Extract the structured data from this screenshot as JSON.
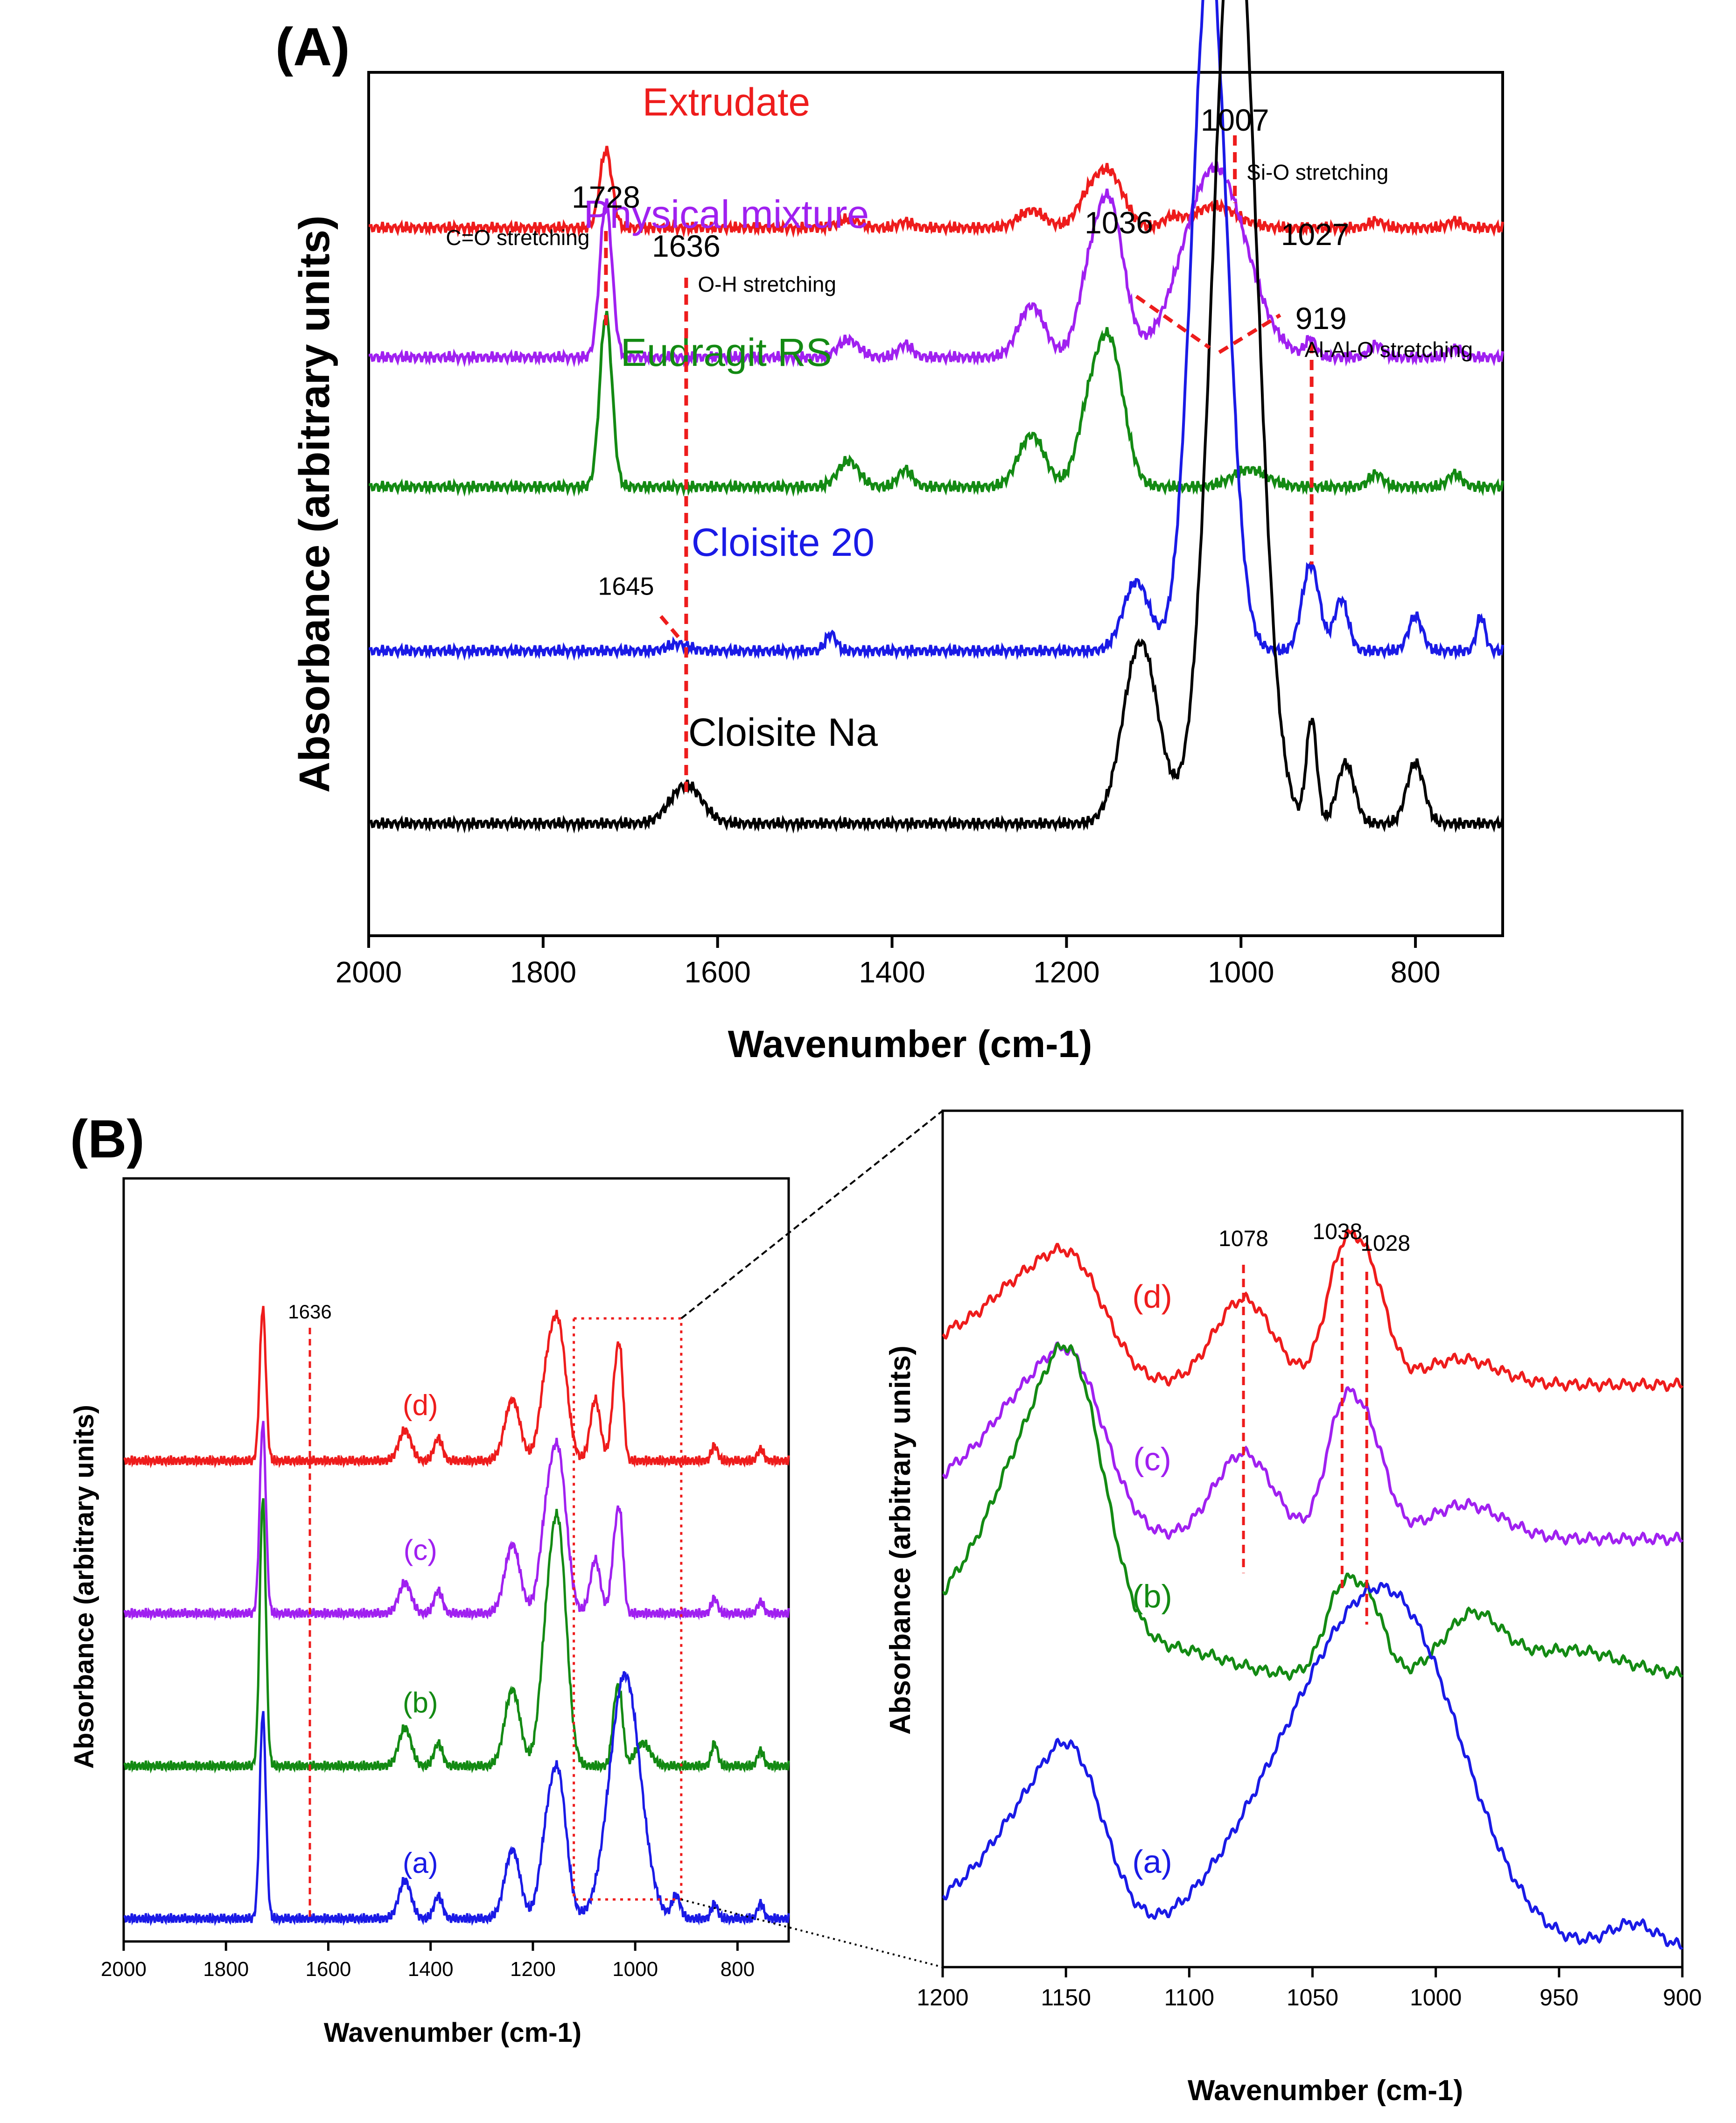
{
  "chart_data": [
    {
      "type": "line",
      "panel_label": "(A)",
      "xlabel": "Wavenumber (cm-1)",
      "ylabel": "Absorbance (arbitrary units)",
      "xlim": [
        2000,
        700
      ],
      "xticks": [
        2000,
        1800,
        1600,
        1400,
        1200,
        1000,
        800
      ],
      "series": [
        {
          "name": "Extrudate",
          "label": "Extrudate",
          "color": "#ee1c1c",
          "baseline": 0.82,
          "peaks": [
            [
              1728,
              0.09,
              7
            ],
            [
              1450,
              0.01,
              12
            ],
            [
              1385,
              0.007,
              8
            ],
            [
              1240,
              0.02,
              15
            ],
            [
              1150,
              0.06,
              16
            ],
            [
              1175,
              0.03,
              14
            ],
            [
              1080,
              0.01,
              10
            ],
            [
              1030,
              0.025,
              25
            ],
            [
              845,
              0.008,
              8
            ],
            [
              755,
              0.008,
              8
            ]
          ]
        },
        {
          "name": "Physical mixture",
          "label": "Physical mixture",
          "color": "#a020f0",
          "baseline": 0.67,
          "peaks": [
            [
              1728,
              0.18,
              7
            ],
            [
              1450,
              0.02,
              12
            ],
            [
              1385,
              0.015,
              8
            ],
            [
              1240,
              0.06,
              15
            ],
            [
              1150,
              0.17,
              16
            ],
            [
              1175,
              0.07,
              14
            ],
            [
              1030,
              0.22,
              36
            ],
            [
              920,
              0.02,
              6
            ],
            [
              845,
              0.015,
              8
            ],
            [
              755,
              0.01,
              8
            ]
          ]
        },
        {
          "name": "Eudragit RS",
          "label": "Eudragit RS",
          "color": "#138a13",
          "baseline": 0.52,
          "peaks": [
            [
              1728,
              0.2,
              7
            ],
            [
              1450,
              0.03,
              12
            ],
            [
              1385,
              0.02,
              8
            ],
            [
              1240,
              0.06,
              15
            ],
            [
              1150,
              0.16,
              16
            ],
            [
              1175,
              0.07,
              14
            ],
            [
              990,
              0.02,
              20
            ],
            [
              845,
              0.015,
              8
            ],
            [
              755,
              0.015,
              8
            ]
          ]
        },
        {
          "name": "Cloisite 20",
          "label": "Cloisite 20",
          "color": "#1a1ae6",
          "baseline": 0.33,
          "peaks": [
            [
              1645,
              0.008,
              12
            ],
            [
              1470,
              0.02,
              6
            ],
            [
              1120,
              0.08,
              15
            ],
            [
              1036,
              0.81,
              20
            ],
            [
              920,
              0.1,
              10
            ],
            [
              885,
              0.06,
              8
            ],
            [
              800,
              0.04,
              8
            ],
            [
              725,
              0.04,
              5
            ]
          ]
        },
        {
          "name": "Cloisite Na",
          "label": "Cloisite Na",
          "color": "#000000",
          "baseline": 0.13,
          "peaks": [
            [
              1636,
              0.045,
              18
            ],
            [
              1115,
              0.21,
              20
            ],
            [
              1007,
              1.1,
              25
            ],
            [
              919,
              0.12,
              6
            ],
            [
              880,
              0.07,
              10
            ],
            [
              800,
              0.07,
              10
            ]
          ]
        }
      ],
      "annotations": [
        {
          "wavenumber": 1728,
          "value_label": "1728",
          "text": "C=O stretching"
        },
        {
          "wavenumber": 1636,
          "value_label": "1636",
          "text": "O-H stretching"
        },
        {
          "wavenumber": 1645,
          "value_label": "1645",
          "text": ""
        },
        {
          "wavenumber": 1036,
          "value_label": "1036",
          "text": ""
        },
        {
          "wavenumber": 1027,
          "value_label": "1027",
          "text": ""
        },
        {
          "wavenumber": 1007,
          "value_label": "1007",
          "text": "Si-O stretching"
        },
        {
          "wavenumber": 919,
          "value_label": "919",
          "text": "Al-Al-O stretching"
        }
      ]
    },
    {
      "type": "line",
      "panel_label": "(B)",
      "xlabel": "Wavenumber (cm-1)",
      "ylabel": "Absorbance (arbitrary units)",
      "xlim": [
        2000,
        700
      ],
      "xticks": [
        2000,
        1800,
        1600,
        1400,
        1200,
        1000,
        800
      ],
      "zoom_range": [
        1120,
        910
      ],
      "series": [
        {
          "name": "(d)",
          "label": "(d)",
          "color": "#ee1c1c",
          "baseline": 0.63,
          "peaks": [
            [
              1728,
              0.2,
              6
            ],
            [
              1450,
              0.04,
              12
            ],
            [
              1385,
              0.03,
              8
            ],
            [
              1240,
              0.08,
              15
            ],
            [
              1150,
              0.17,
              16
            ],
            [
              1175,
              0.08,
              14
            ],
            [
              1078,
              0.08,
              10
            ],
            [
              1038,
              0.11,
              8
            ],
            [
              1028,
              0.09,
              6
            ],
            [
              845,
              0.02,
              6
            ],
            [
              755,
              0.015,
              6
            ]
          ]
        },
        {
          "name": "(c)",
          "label": "(c)",
          "color": "#a020f0",
          "baseline": 0.43,
          "peaks": [
            [
              1728,
              0.25,
              6
            ],
            [
              1450,
              0.04,
              12
            ],
            [
              1385,
              0.03,
              8
            ],
            [
              1240,
              0.09,
              15
            ],
            [
              1150,
              0.2,
              16
            ],
            [
              1175,
              0.09,
              14
            ],
            [
              1078,
              0.07,
              10
            ],
            [
              1038,
              0.1,
              8
            ],
            [
              1028,
              0.08,
              6
            ],
            [
              845,
              0.02,
              6
            ],
            [
              755,
              0.015,
              6
            ]
          ]
        },
        {
          "name": "(b)",
          "label": "(b)",
          "color": "#138a13",
          "baseline": 0.23,
          "peaks": [
            [
              1728,
              0.35,
              6
            ],
            [
              1450,
              0.05,
              12
            ],
            [
              1385,
              0.03,
              8
            ],
            [
              1240,
              0.1,
              15
            ],
            [
              1150,
              0.3,
              16
            ],
            [
              1175,
              0.12,
              14
            ],
            [
              1038,
              0.08,
              7
            ],
            [
              1028,
              0.06,
              6
            ],
            [
              985,
              0.03,
              15
            ],
            [
              845,
              0.03,
              6
            ],
            [
              755,
              0.02,
              6
            ]
          ]
        },
        {
          "name": "(a)",
          "label": "(a)",
          "color": "#1a1ae6",
          "baseline": 0.03,
          "peaks": [
            [
              1728,
              0.27,
              6
            ],
            [
              1450,
              0.05,
              12
            ],
            [
              1385,
              0.03,
              8
            ],
            [
              1240,
              0.09,
              15
            ],
            [
              1150,
              0.18,
              16
            ],
            [
              1175,
              0.08,
              14
            ],
            [
              1020,
              0.32,
              30
            ],
            [
              920,
              0.03,
              8
            ],
            [
              845,
              0.02,
              6
            ],
            [
              755,
              0.02,
              6
            ]
          ]
        }
      ],
      "annotations": [
        {
          "wavenumber": 1636,
          "value_label": "1636",
          "text": ""
        }
      ]
    },
    {
      "type": "line",
      "panel_label": "",
      "xlabel": "Wavenumber (cm-1)",
      "ylabel": "Absorbance (arbitrary units)",
      "xlim": [
        1200,
        900
      ],
      "xticks": [
        1200,
        1150,
        1100,
        1050,
        1000,
        950,
        900
      ],
      "series": [
        {
          "name": "(d)",
          "label": "(d)",
          "color": "#ee1c1c",
          "baseline": 0.68,
          "peaks": [
            [
              1200,
              0.04,
              10
            ],
            [
              1175,
              0.09,
              14
            ],
            [
              1148,
              0.14,
              14
            ],
            [
              1078,
              0.1,
              12
            ],
            [
              1038,
              0.14,
              7
            ],
            [
              1026,
              0.11,
              7
            ],
            [
              990,
              0.03,
              15
            ]
          ]
        },
        {
          "name": "(c)",
          "label": "(c)",
          "color": "#a020f0",
          "baseline": 0.5,
          "peaks": [
            [
              1200,
              0.05,
              10
            ],
            [
              1175,
              0.12,
              14
            ],
            [
              1148,
              0.2,
              14
            ],
            [
              1078,
              0.1,
              12
            ],
            [
              1038,
              0.14,
              7
            ],
            [
              1026,
              0.1,
              7
            ],
            [
              988,
              0.04,
              15
            ]
          ]
        },
        {
          "name": "(b)",
          "label": "(b)",
          "color": "#138a13",
          "baseline": 0.34,
          "peaks": [
            [
              1200,
              0.06,
              10
            ],
            [
              1175,
              0.18,
              14
            ],
            [
              1148,
              0.35,
              14
            ],
            [
              1105,
              0.03,
              20
            ],
            [
              1038,
              0.1,
              7
            ],
            [
              1026,
              0.07,
              6
            ],
            [
              985,
              0.07,
              12
            ],
            [
              945,
              0.03,
              20
            ]
          ]
        },
        {
          "name": "(a)",
          "label": "(a)",
          "color": "#1a1ae6",
          "baseline": 0.02,
          "peaks": [
            [
              1200,
              0.04,
              10
            ],
            [
              1175,
              0.11,
              14
            ],
            [
              1148,
              0.22,
              14
            ],
            [
              1040,
              0.28,
              35
            ],
            [
              1010,
              0.2,
              25
            ],
            [
              920,
              0.03,
              10
            ]
          ]
        }
      ],
      "annotations": [
        {
          "wavenumber": 1078,
          "value_label": "1078",
          "text": ""
        },
        {
          "wavenumber": 1038,
          "value_label": "1038",
          "text": ""
        },
        {
          "wavenumber": 1028,
          "value_label": "1028",
          "text": ""
        }
      ]
    }
  ]
}
